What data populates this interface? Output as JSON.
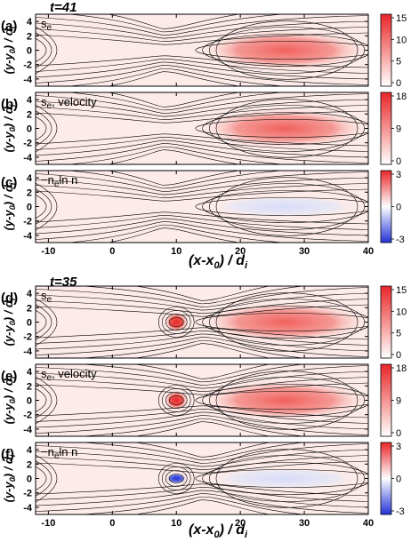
{
  "figure": {
    "blocks": [
      {
        "time_label": "t=41",
        "x_axis_label": "(x-x",
        "x_axis_label_sub": "0",
        "x_axis_label_tail": ") / d",
        "x_axis_label_tail_sub": "i",
        "panels": [
          {
            "letter": "(a)",
            "quantity": "s",
            "quantity_sub": "e",
            "quantity_sub2": "",
            "kind": "pos",
            "cb_max": 15,
            "cb_ticks": [
              "15",
              "10",
              "5",
              "0"
            ]
          },
          {
            "letter": "(b)",
            "quantity": "s",
            "quantity_sub": "e",
            "quantity_sub2": ", velocity",
            "kind": "pos",
            "cb_max": 18,
            "cb_ticks": [
              "18",
              "9",
              "0"
            ]
          },
          {
            "letter": "(c)",
            "quantity": "−n",
            "quantity_sub": "e",
            "quantity_sub2": "ln n_e",
            "kind": "div",
            "cb_max": 3,
            "cb_ticks": [
              "3",
              "0",
              "-3"
            ]
          }
        ]
      },
      {
        "time_label": "t=35",
        "x_axis_label": "(x-x",
        "x_axis_label_sub": "0",
        "x_axis_label_tail": ") / d",
        "x_axis_label_tail_sub": "i",
        "panels": [
          {
            "letter": "(d)",
            "quantity": "s",
            "quantity_sub": "e",
            "quantity_sub2": "",
            "kind": "pos",
            "cb_max": 15,
            "cb_ticks": [
              "15",
              "10",
              "5",
              "0"
            ]
          },
          {
            "letter": "(e)",
            "quantity": "s",
            "quantity_sub": "e",
            "quantity_sub2": ", velocity",
            "kind": "pos",
            "cb_max": 18,
            "cb_ticks": [
              "18",
              "9",
              "0"
            ]
          },
          {
            "letter": "(f)",
            "quantity": "−n",
            "quantity_sub": "e",
            "quantity_sub2": "ln n_e",
            "kind": "div",
            "cb_max": 3,
            "cb_ticks": [
              "3",
              "0",
              "-3"
            ]
          }
        ]
      }
    ],
    "y_axis_label": "(y-y",
    "y_axis_label_sub": "0",
    "y_axis_label_tail": ") / d",
    "y_axis_label_tail_sub": "i",
    "x_range": [
      -12,
      40
    ],
    "y_range": [
      -5,
      5
    ],
    "x_ticks": [
      "-10",
      "0",
      "10",
      "20",
      "30",
      "40"
    ],
    "x_tick_values": [
      -10,
      0,
      10,
      20,
      30,
      40
    ],
    "y_ticks": [
      "4",
      "2",
      "0",
      "-2",
      "-4"
    ],
    "y_tick_values": [
      4,
      2,
      0,
      -2,
      -4
    ],
    "colors": {
      "positive": "#e8262a",
      "negative": "#2333d6",
      "background": "#fcebe8",
      "contour": "#000000"
    }
  }
}
